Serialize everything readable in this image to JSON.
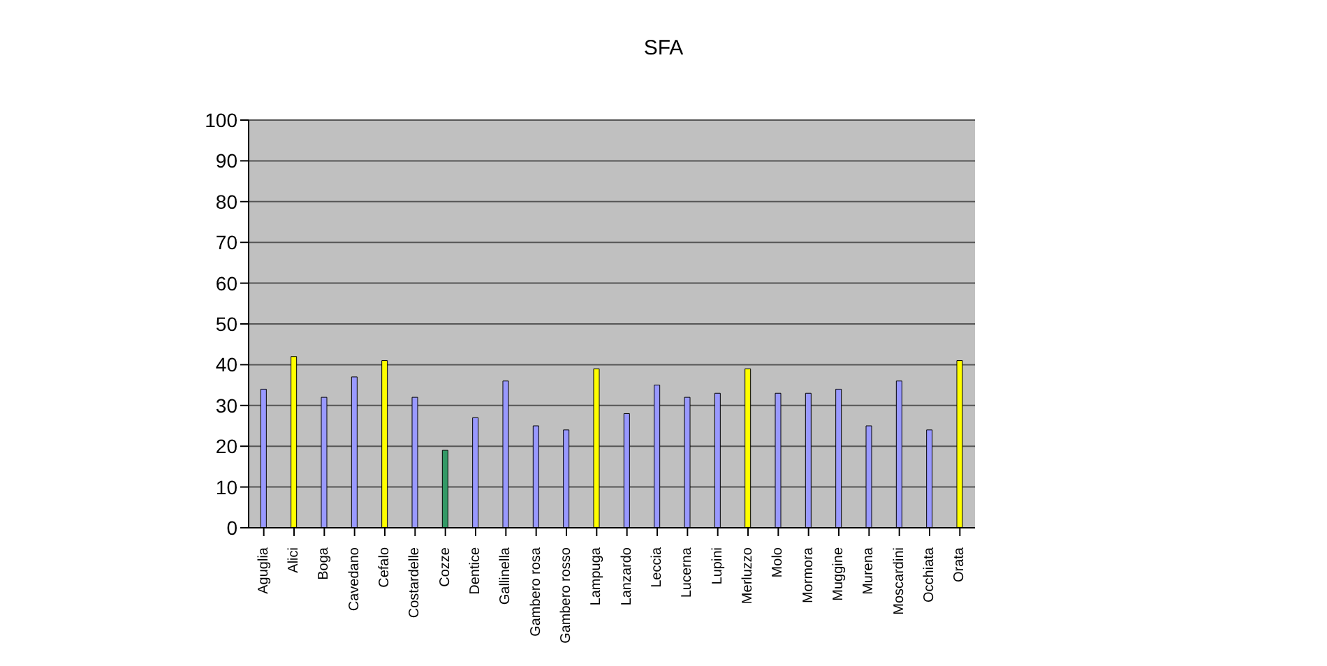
{
  "chart_data": {
    "type": "bar",
    "title": "SFA",
    "categories": [
      "Aguglia",
      "Alici",
      "Boga",
      "Cavedano",
      "Cefalo",
      "Costardelle",
      "Cozze",
      "Dentice",
      "Gallinella",
      "Gambero rosa",
      "Gambero rosso",
      "Lampuga",
      "Lanzardo",
      "Leccia",
      "Lucerna",
      "Lupini",
      "Merluzzo",
      "Molo",
      "Mormora",
      "Muggine",
      "Murena",
      "Moscardini",
      "Occhiata",
      "Orata"
    ],
    "values": [
      34,
      42,
      32,
      37,
      41,
      32,
      19,
      27,
      36,
      25,
      24,
      39,
      28,
      35,
      32,
      33,
      39,
      33,
      33,
      34,
      25,
      36,
      24,
      41
    ],
    "colors": [
      "#9999ff",
      "#ffff00",
      "#9999ff",
      "#9999ff",
      "#ffff00",
      "#9999ff",
      "#339966",
      "#9999ff",
      "#9999ff",
      "#9999ff",
      "#9999ff",
      "#ffff00",
      "#9999ff",
      "#9999ff",
      "#9999ff",
      "#9999ff",
      "#ffff00",
      "#9999ff",
      "#9999ff",
      "#9999ff",
      "#9999ff",
      "#9999ff",
      "#9999ff",
      "#ffff00"
    ],
    "ylim": [
      0,
      100
    ],
    "yticks": [
      0,
      10,
      20,
      30,
      40,
      50,
      60,
      70,
      80,
      90,
      100
    ],
    "grid": "y"
  }
}
